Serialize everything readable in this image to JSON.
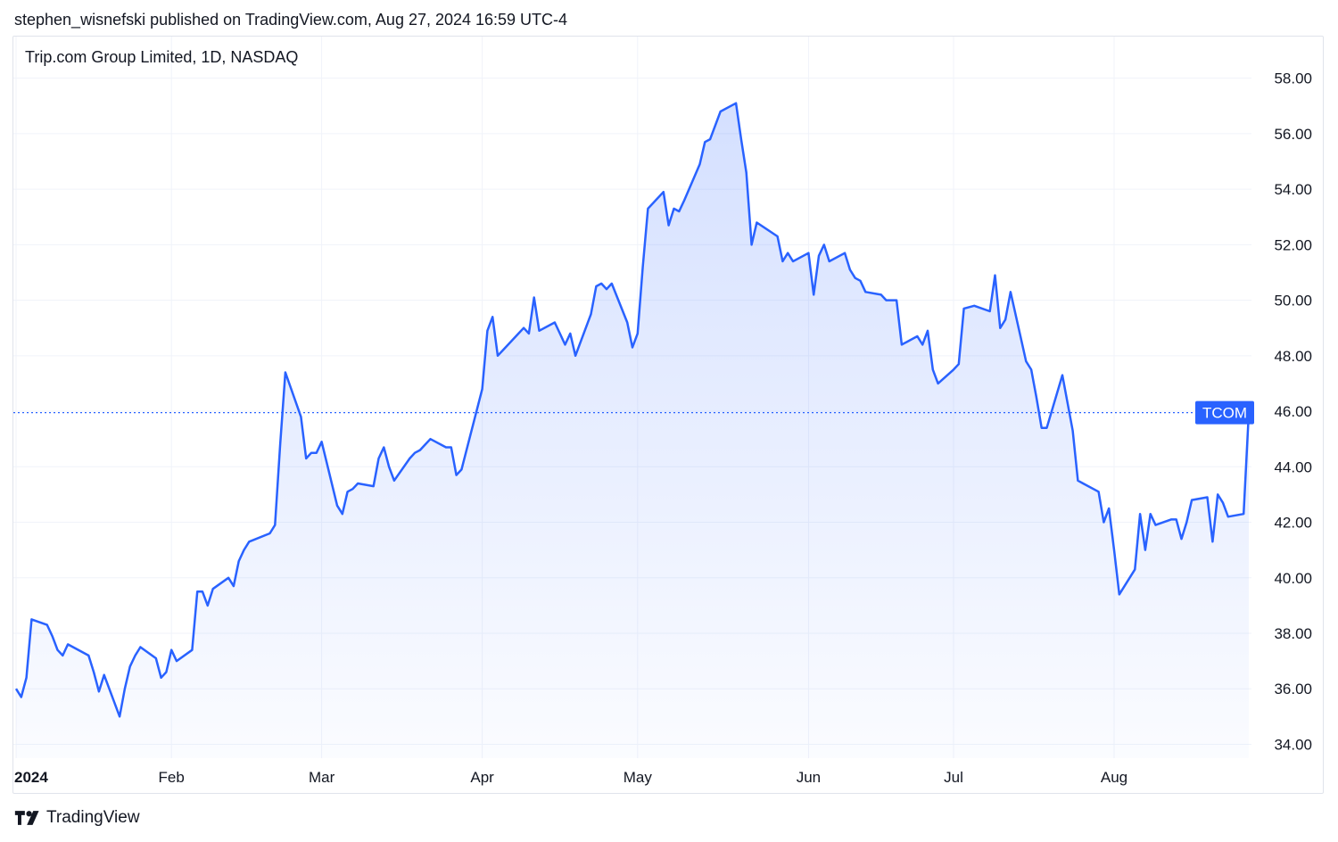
{
  "header": {
    "published_line": "stephen_wisnefski published on TradingView.com, Aug 27, 2024 16:59 UTC-4"
  },
  "chart": {
    "symbol_title": "Trip.com Group Limited, 1D, NASDAQ",
    "ticker_badge": "TCOM",
    "last_price_marker": 45.95
  },
  "footer": {
    "brand": "TradingView"
  },
  "colors": {
    "line": "#2962ff",
    "badge": "#2962ff",
    "grid": "#f0f3fa",
    "axis_text": "#131722"
  },
  "chart_data": {
    "type": "area",
    "title": "Trip.com Group Limited, 1D, NASDAQ",
    "xlabel": "",
    "ylabel": "",
    "ylim": [
      33.5,
      59.5
    ],
    "y_ticks": [
      "34.00",
      "36.00",
      "38.00",
      "40.00",
      "42.00",
      "44.00",
      "46.00",
      "48.00",
      "50.00",
      "52.00",
      "54.00",
      "56.00",
      "58.00"
    ],
    "x_ticks": [
      {
        "label": "2024",
        "date": "2024-01-02"
      },
      {
        "label": "Feb",
        "date": "2024-02-01"
      },
      {
        "label": "Mar",
        "date": "2024-03-01"
      },
      {
        "label": "Apr",
        "date": "2024-04-01"
      },
      {
        "label": "May",
        "date": "2024-05-01"
      },
      {
        "label": "Jun",
        "date": "2024-06-03"
      },
      {
        "label": "Jul",
        "date": "2024-07-01"
      },
      {
        "label": "Aug",
        "date": "2024-08-01"
      }
    ],
    "grid": true,
    "series": [
      {
        "name": "TCOM",
        "x": [
          "2024-01-02",
          "2024-01-03",
          "2024-01-04",
          "2024-01-05",
          "2024-01-08",
          "2024-01-09",
          "2024-01-10",
          "2024-01-11",
          "2024-01-12",
          "2024-01-16",
          "2024-01-17",
          "2024-01-18",
          "2024-01-19",
          "2024-01-22",
          "2024-01-23",
          "2024-01-24",
          "2024-01-25",
          "2024-01-26",
          "2024-01-29",
          "2024-01-30",
          "2024-01-31",
          "2024-02-01",
          "2024-02-02",
          "2024-02-05",
          "2024-02-06",
          "2024-02-07",
          "2024-02-08",
          "2024-02-09",
          "2024-02-12",
          "2024-02-13",
          "2024-02-14",
          "2024-02-15",
          "2024-02-16",
          "2024-02-20",
          "2024-02-21",
          "2024-02-22",
          "2024-02-23",
          "2024-02-26",
          "2024-02-27",
          "2024-02-28",
          "2024-02-29",
          "2024-03-01",
          "2024-03-04",
          "2024-03-05",
          "2024-03-06",
          "2024-03-07",
          "2024-03-08",
          "2024-03-11",
          "2024-03-12",
          "2024-03-13",
          "2024-03-14",
          "2024-03-15",
          "2024-03-18",
          "2024-03-19",
          "2024-03-20",
          "2024-03-21",
          "2024-03-22",
          "2024-03-25",
          "2024-03-26",
          "2024-03-27",
          "2024-03-28",
          "2024-04-01",
          "2024-04-02",
          "2024-04-03",
          "2024-04-04",
          "2024-04-05",
          "2024-04-08",
          "2024-04-09",
          "2024-04-10",
          "2024-04-11",
          "2024-04-12",
          "2024-04-15",
          "2024-04-16",
          "2024-04-17",
          "2024-04-18",
          "2024-04-19",
          "2024-04-22",
          "2024-04-23",
          "2024-04-24",
          "2024-04-25",
          "2024-04-26",
          "2024-04-29",
          "2024-04-30",
          "2024-05-01",
          "2024-05-02",
          "2024-05-03",
          "2024-05-06",
          "2024-05-07",
          "2024-05-08",
          "2024-05-09",
          "2024-05-10",
          "2024-05-13",
          "2024-05-14",
          "2024-05-15",
          "2024-05-16",
          "2024-05-17",
          "2024-05-20",
          "2024-05-21",
          "2024-05-22",
          "2024-05-23",
          "2024-05-24",
          "2024-05-28",
          "2024-05-29",
          "2024-05-30",
          "2024-05-31",
          "2024-06-03",
          "2024-06-04",
          "2024-06-05",
          "2024-06-06",
          "2024-06-07",
          "2024-06-10",
          "2024-06-11",
          "2024-06-12",
          "2024-06-13",
          "2024-06-14",
          "2024-06-17",
          "2024-06-18",
          "2024-06-20",
          "2024-06-21",
          "2024-06-24",
          "2024-06-25",
          "2024-06-26",
          "2024-06-27",
          "2024-06-28",
          "2024-07-01",
          "2024-07-02",
          "2024-07-03",
          "2024-07-05",
          "2024-07-08",
          "2024-07-09",
          "2024-07-10",
          "2024-07-11",
          "2024-07-12",
          "2024-07-15",
          "2024-07-16",
          "2024-07-17",
          "2024-07-18",
          "2024-07-19",
          "2024-07-22",
          "2024-07-23",
          "2024-07-24",
          "2024-07-25",
          "2024-07-26",
          "2024-07-29",
          "2024-07-30",
          "2024-07-31",
          "2024-08-01",
          "2024-08-02",
          "2024-08-05",
          "2024-08-06",
          "2024-08-07",
          "2024-08-08",
          "2024-08-09",
          "2024-08-12",
          "2024-08-13",
          "2024-08-14",
          "2024-08-15",
          "2024-08-16",
          "2024-08-19",
          "2024-08-20",
          "2024-08-21",
          "2024-08-22",
          "2024-08-23",
          "2024-08-26",
          "2024-08-27"
        ],
        "values": [
          36.0,
          35.7,
          36.4,
          38.5,
          38.3,
          37.9,
          37.4,
          37.2,
          37.6,
          37.2,
          36.6,
          35.9,
          36.5,
          35.0,
          36.0,
          36.8,
          37.2,
          37.5,
          37.1,
          36.4,
          36.6,
          37.4,
          37.0,
          37.4,
          39.5,
          39.5,
          39.0,
          39.6,
          40.0,
          39.7,
          40.6,
          41.0,
          41.3,
          41.6,
          41.9,
          44.8,
          47.4,
          45.8,
          44.3,
          44.5,
          44.5,
          44.9,
          42.6,
          42.3,
          43.1,
          43.2,
          43.4,
          43.3,
          44.3,
          44.7,
          44.0,
          43.5,
          44.3,
          44.5,
          44.6,
          44.8,
          45.0,
          44.7,
          44.7,
          43.7,
          43.9,
          46.8,
          48.9,
          49.4,
          48.0,
          48.2,
          48.8,
          49.0,
          48.8,
          50.1,
          48.9,
          49.2,
          48.8,
          48.4,
          48.8,
          48.0,
          49.5,
          50.5,
          50.6,
          50.4,
          50.6,
          49.2,
          48.3,
          48.8,
          51.2,
          53.3,
          53.9,
          52.7,
          53.3,
          53.2,
          53.6,
          54.9,
          55.7,
          55.8,
          56.3,
          56.8,
          57.1,
          55.8,
          54.6,
          52.0,
          52.8,
          52.3,
          51.4,
          51.7,
          51.4,
          51.7,
          50.2,
          51.6,
          52.0,
          51.4,
          51.7,
          51.1,
          50.8,
          50.7,
          50.3,
          50.2,
          50.0,
          50.0,
          48.4,
          48.7,
          48.4,
          48.9,
          47.5,
          47.0,
          47.5,
          47.7,
          49.7,
          49.8,
          49.6,
          50.9,
          49.0,
          49.3,
          50.3,
          47.8,
          47.5,
          46.5,
          45.4,
          45.4,
          47.3,
          46.3,
          45.3,
          43.5,
          43.4,
          43.1,
          42.0,
          42.5,
          41.0,
          39.4,
          40.3,
          42.3,
          41.0,
          42.3,
          41.9,
          42.1,
          42.1,
          41.4,
          42.0,
          42.8,
          42.9,
          41.3,
          43.0,
          42.7,
          42.2,
          42.3,
          45.95
        ]
      }
    ]
  }
}
